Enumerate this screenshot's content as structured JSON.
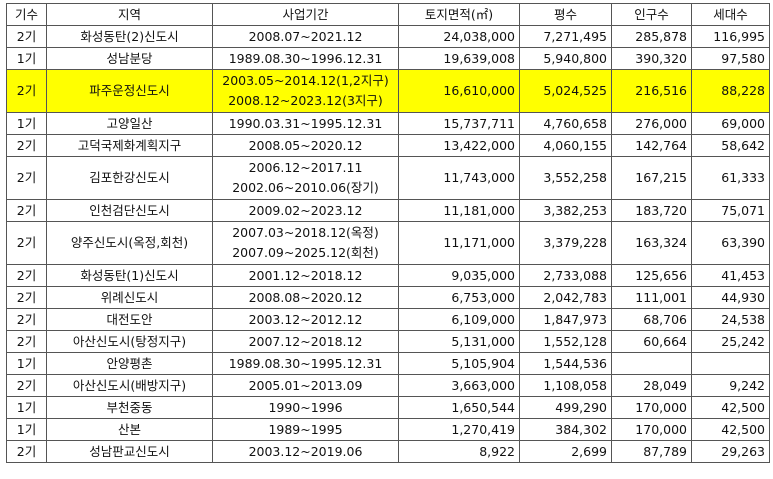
{
  "table": {
    "headers": [
      "기수",
      "지역",
      "사업기간",
      "토지면적(㎡)",
      "평수",
      "인구수",
      "세대수"
    ],
    "rows": [
      {
        "gen": "2기",
        "region": "화성동탄(2)신도시",
        "period": [
          "2008.07~2021.12"
        ],
        "area": "24,038,000",
        "pyeong": "7,271,495",
        "population": "285,878",
        "households": "116,995",
        "highlight": false
      },
      {
        "gen": "1기",
        "region": "성남분당",
        "period": [
          "1989.08.30~1996.12.31"
        ],
        "area": "19,639,008",
        "pyeong": "5,940,800",
        "population": "390,320",
        "households": "97,580",
        "highlight": false
      },
      {
        "gen": "2기",
        "region": "파주운정신도시",
        "period": [
          "2003.05~2014.12(1,2지구)",
          "2008.12~2023.12(3지구)"
        ],
        "area": "16,610,000",
        "pyeong": "5,024,525",
        "population": "216,516",
        "households": "88,228",
        "highlight": true
      },
      {
        "gen": "1기",
        "region": "고양일산",
        "period": [
          "1990.03.31~1995.12.31"
        ],
        "area": "15,737,711",
        "pyeong": "4,760,658",
        "population": "276,000",
        "households": "69,000",
        "highlight": false
      },
      {
        "gen": "2기",
        "region": "고덕국제화계획지구",
        "period": [
          "2008.05~2020.12"
        ],
        "area": "13,422,000",
        "pyeong": "4,060,155",
        "population": "142,764",
        "households": "58,642",
        "highlight": false
      },
      {
        "gen": "2기",
        "region": "김포한강신도시",
        "period": [
          "2006.12~2017.11",
          "2002.06~2010.06(장기)"
        ],
        "area": "11,743,000",
        "pyeong": "3,552,258",
        "population": "167,215",
        "households": "61,333",
        "highlight": false
      },
      {
        "gen": "2기",
        "region": "인천검단신도시",
        "period": [
          "2009.02~2023.12"
        ],
        "area": "11,181,000",
        "pyeong": "3,382,253",
        "population": "183,720",
        "households": "75,071",
        "highlight": false
      },
      {
        "gen": "2기",
        "region": "양주신도시(옥정,회천)",
        "period": [
          "2007.03~2018.12(옥정)",
          "2007.09~2025.12(회천)"
        ],
        "area": "11,171,000",
        "pyeong": "3,379,228",
        "population": "163,324",
        "households": "63,390",
        "highlight": false
      },
      {
        "gen": "2기",
        "region": "화성동탄(1)신도시",
        "period": [
          "2001.12~2018.12"
        ],
        "area": "9,035,000",
        "pyeong": "2,733,088",
        "population": "125,656",
        "households": "41,453",
        "highlight": false
      },
      {
        "gen": "2기",
        "region": "위례신도시",
        "period": [
          "2008.08~2020.12"
        ],
        "area": "6,753,000",
        "pyeong": "2,042,783",
        "population": "111,001",
        "households": "44,930",
        "highlight": false
      },
      {
        "gen": "2기",
        "region": "대전도안",
        "period": [
          "2003.12~2012.12"
        ],
        "area": "6,109,000",
        "pyeong": "1,847,973",
        "population": "68,706",
        "households": "24,538",
        "highlight": false
      },
      {
        "gen": "2기",
        "region": "아산신도시(탕정지구)",
        "period": [
          "2007.12~2018.12"
        ],
        "area": "5,131,000",
        "pyeong": "1,552,128",
        "population": "60,664",
        "households": "25,242",
        "highlight": false
      },
      {
        "gen": "1기",
        "region": "안양평촌",
        "period": [
          "1989.08.30~1995.12.31"
        ],
        "area": "5,105,904",
        "pyeong": "1,544,536",
        "population": "",
        "households": "",
        "highlight": false
      },
      {
        "gen": "2기",
        "region": "아산신도시(배방지구)",
        "period": [
          "2005.01~2013.09"
        ],
        "area": "3,663,000",
        "pyeong": "1,108,058",
        "population": "28,049",
        "households": "9,242",
        "highlight": false
      },
      {
        "gen": "1기",
        "region": "부천중동",
        "period": [
          "1990~1996"
        ],
        "area": "1,650,544",
        "pyeong": "499,290",
        "population": "170,000",
        "households": "42,500",
        "highlight": false
      },
      {
        "gen": "1기",
        "region": "산본",
        "period": [
          "1989~1995"
        ],
        "area": "1,270,419",
        "pyeong": "384,302",
        "population": "170,000",
        "households": "42,500",
        "highlight": false
      },
      {
        "gen": "2기",
        "region": "성남판교신도시",
        "period": [
          "2003.12~2019.06"
        ],
        "area": "8,922",
        "pyeong": "2,699",
        "population": "87,789",
        "households": "29,263",
        "highlight": false
      }
    ]
  }
}
